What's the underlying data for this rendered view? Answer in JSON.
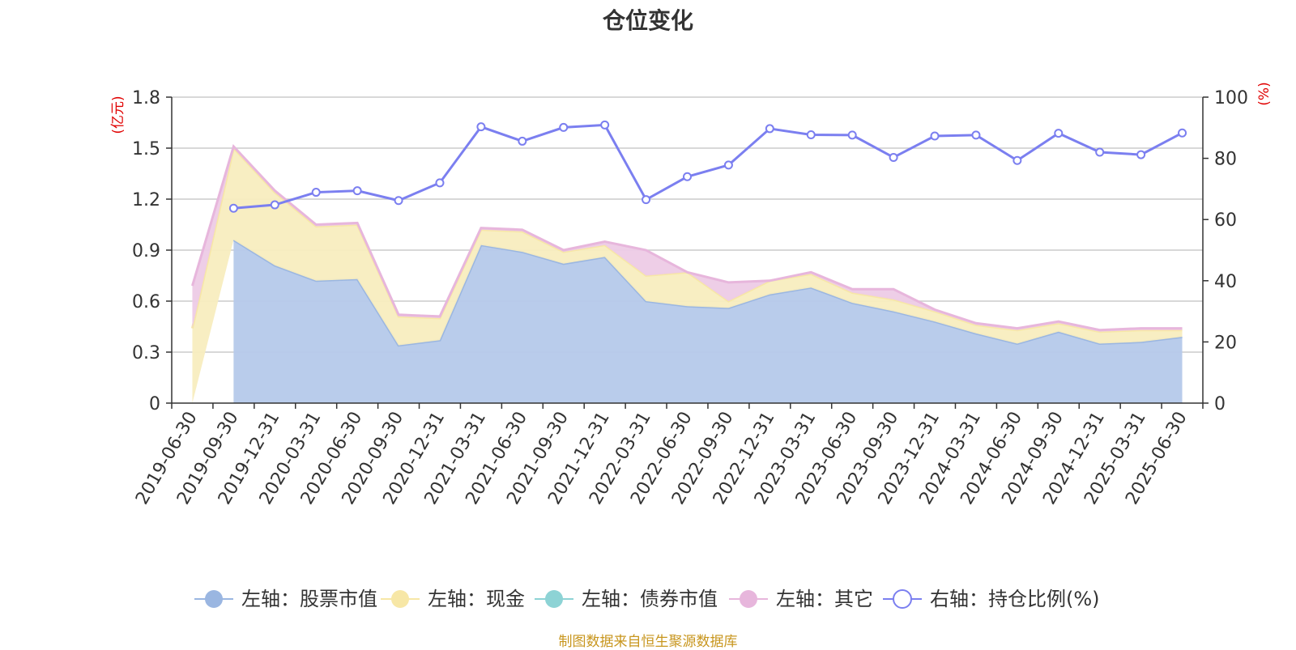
{
  "chart_data": {
    "type": "area",
    "title": "仓位变化",
    "footer": "制图数据来自恒生聚源数据库",
    "left_axis_unit": "(亿元)",
    "right_axis_unit": "(%)",
    "left_ylim": [
      0,
      1.8
    ],
    "left_ticks": [
      "0",
      "0.3",
      "0.6",
      "0.9",
      "1.2",
      "1.5",
      "1.8"
    ],
    "right_ylim": [
      0,
      100
    ],
    "right_ticks": [
      "0",
      "20",
      "40",
      "60",
      "80",
      "100"
    ],
    "grid": true,
    "legend_position": "bottom",
    "categories": [
      "2019-06-30",
      "2019-09-30",
      "2019-12-31",
      "2020-03-31",
      "2020-06-30",
      "2020-09-30",
      "2020-12-31",
      "2021-03-31",
      "2021-06-30",
      "2021-09-30",
      "2021-12-31",
      "2022-03-31",
      "2022-06-30",
      "2022-09-30",
      "2022-12-31",
      "2023-03-31",
      "2023-06-30",
      "2023-09-30",
      "2023-12-31",
      "2024-03-31",
      "2024-06-30",
      "2024-09-30",
      "2024-12-31",
      "2025-03-31",
      "2025-06-30"
    ],
    "series": [
      {
        "name": "左轴：股票市值",
        "axis": "left",
        "color": "#9ab6e1",
        "fill": "#b5c9ea",
        "values": [
          null,
          0.96,
          0.81,
          0.72,
          0.73,
          0.34,
          0.37,
          0.93,
          0.89,
          0.82,
          0.86,
          0.6,
          0.57,
          0.56,
          0.64,
          0.68,
          0.59,
          0.54,
          0.48,
          0.41,
          0.35,
          0.42,
          0.35,
          0.36,
          0.39
        ]
      },
      {
        "name": "左轴：现金",
        "axis": "left",
        "color": "#f7e7a6",
        "fill": "#f8edbf",
        "values": [
          0.44,
          0.54,
          0.43,
          0.32,
          0.32,
          0.17,
          0.13,
          0.09,
          0.12,
          0.07,
          0.07,
          0.15,
          0.2,
          0.04,
          0.08,
          0.08,
          0.06,
          0.07,
          0.06,
          0.05,
          0.08,
          0.05,
          0.07,
          0.07,
          0.04
        ]
      },
      {
        "name": "左轴：债券市值",
        "axis": "left",
        "color": "#8dd3d5",
        "fill": "#b9e3e4",
        "values": [
          0,
          0,
          0,
          0,
          0,
          0,
          0,
          0,
          0,
          0,
          0,
          0,
          0,
          0,
          0,
          0,
          0,
          0,
          0,
          0,
          0,
          0,
          0,
          0,
          0
        ]
      },
      {
        "name": "左轴：其它",
        "axis": "left",
        "color": "#e7b6dc",
        "fill": "#edcbe6",
        "values": [
          0.25,
          0.01,
          0.01,
          0.01,
          0.01,
          0.01,
          0.01,
          0.01,
          0.01,
          0.01,
          0.02,
          0.15,
          0.0,
          0.11,
          0.0,
          0.01,
          0.02,
          0.06,
          0.01,
          0.01,
          0.01,
          0.01,
          0.01,
          0.01,
          0.01
        ]
      },
      {
        "name": "右轴：持仓比例(%)",
        "axis": "right",
        "color": "#7b7ff0",
        "values": [
          null,
          63.7,
          64.8,
          68.9,
          69.4,
          66.2,
          72.0,
          90.3,
          85.6,
          90.1,
          90.9,
          66.5,
          74.0,
          77.8,
          89.7,
          87.7,
          87.6,
          80.3,
          87.3,
          87.6,
          79.3,
          88.2,
          82.0,
          81.2,
          88.3
        ]
      }
    ]
  }
}
